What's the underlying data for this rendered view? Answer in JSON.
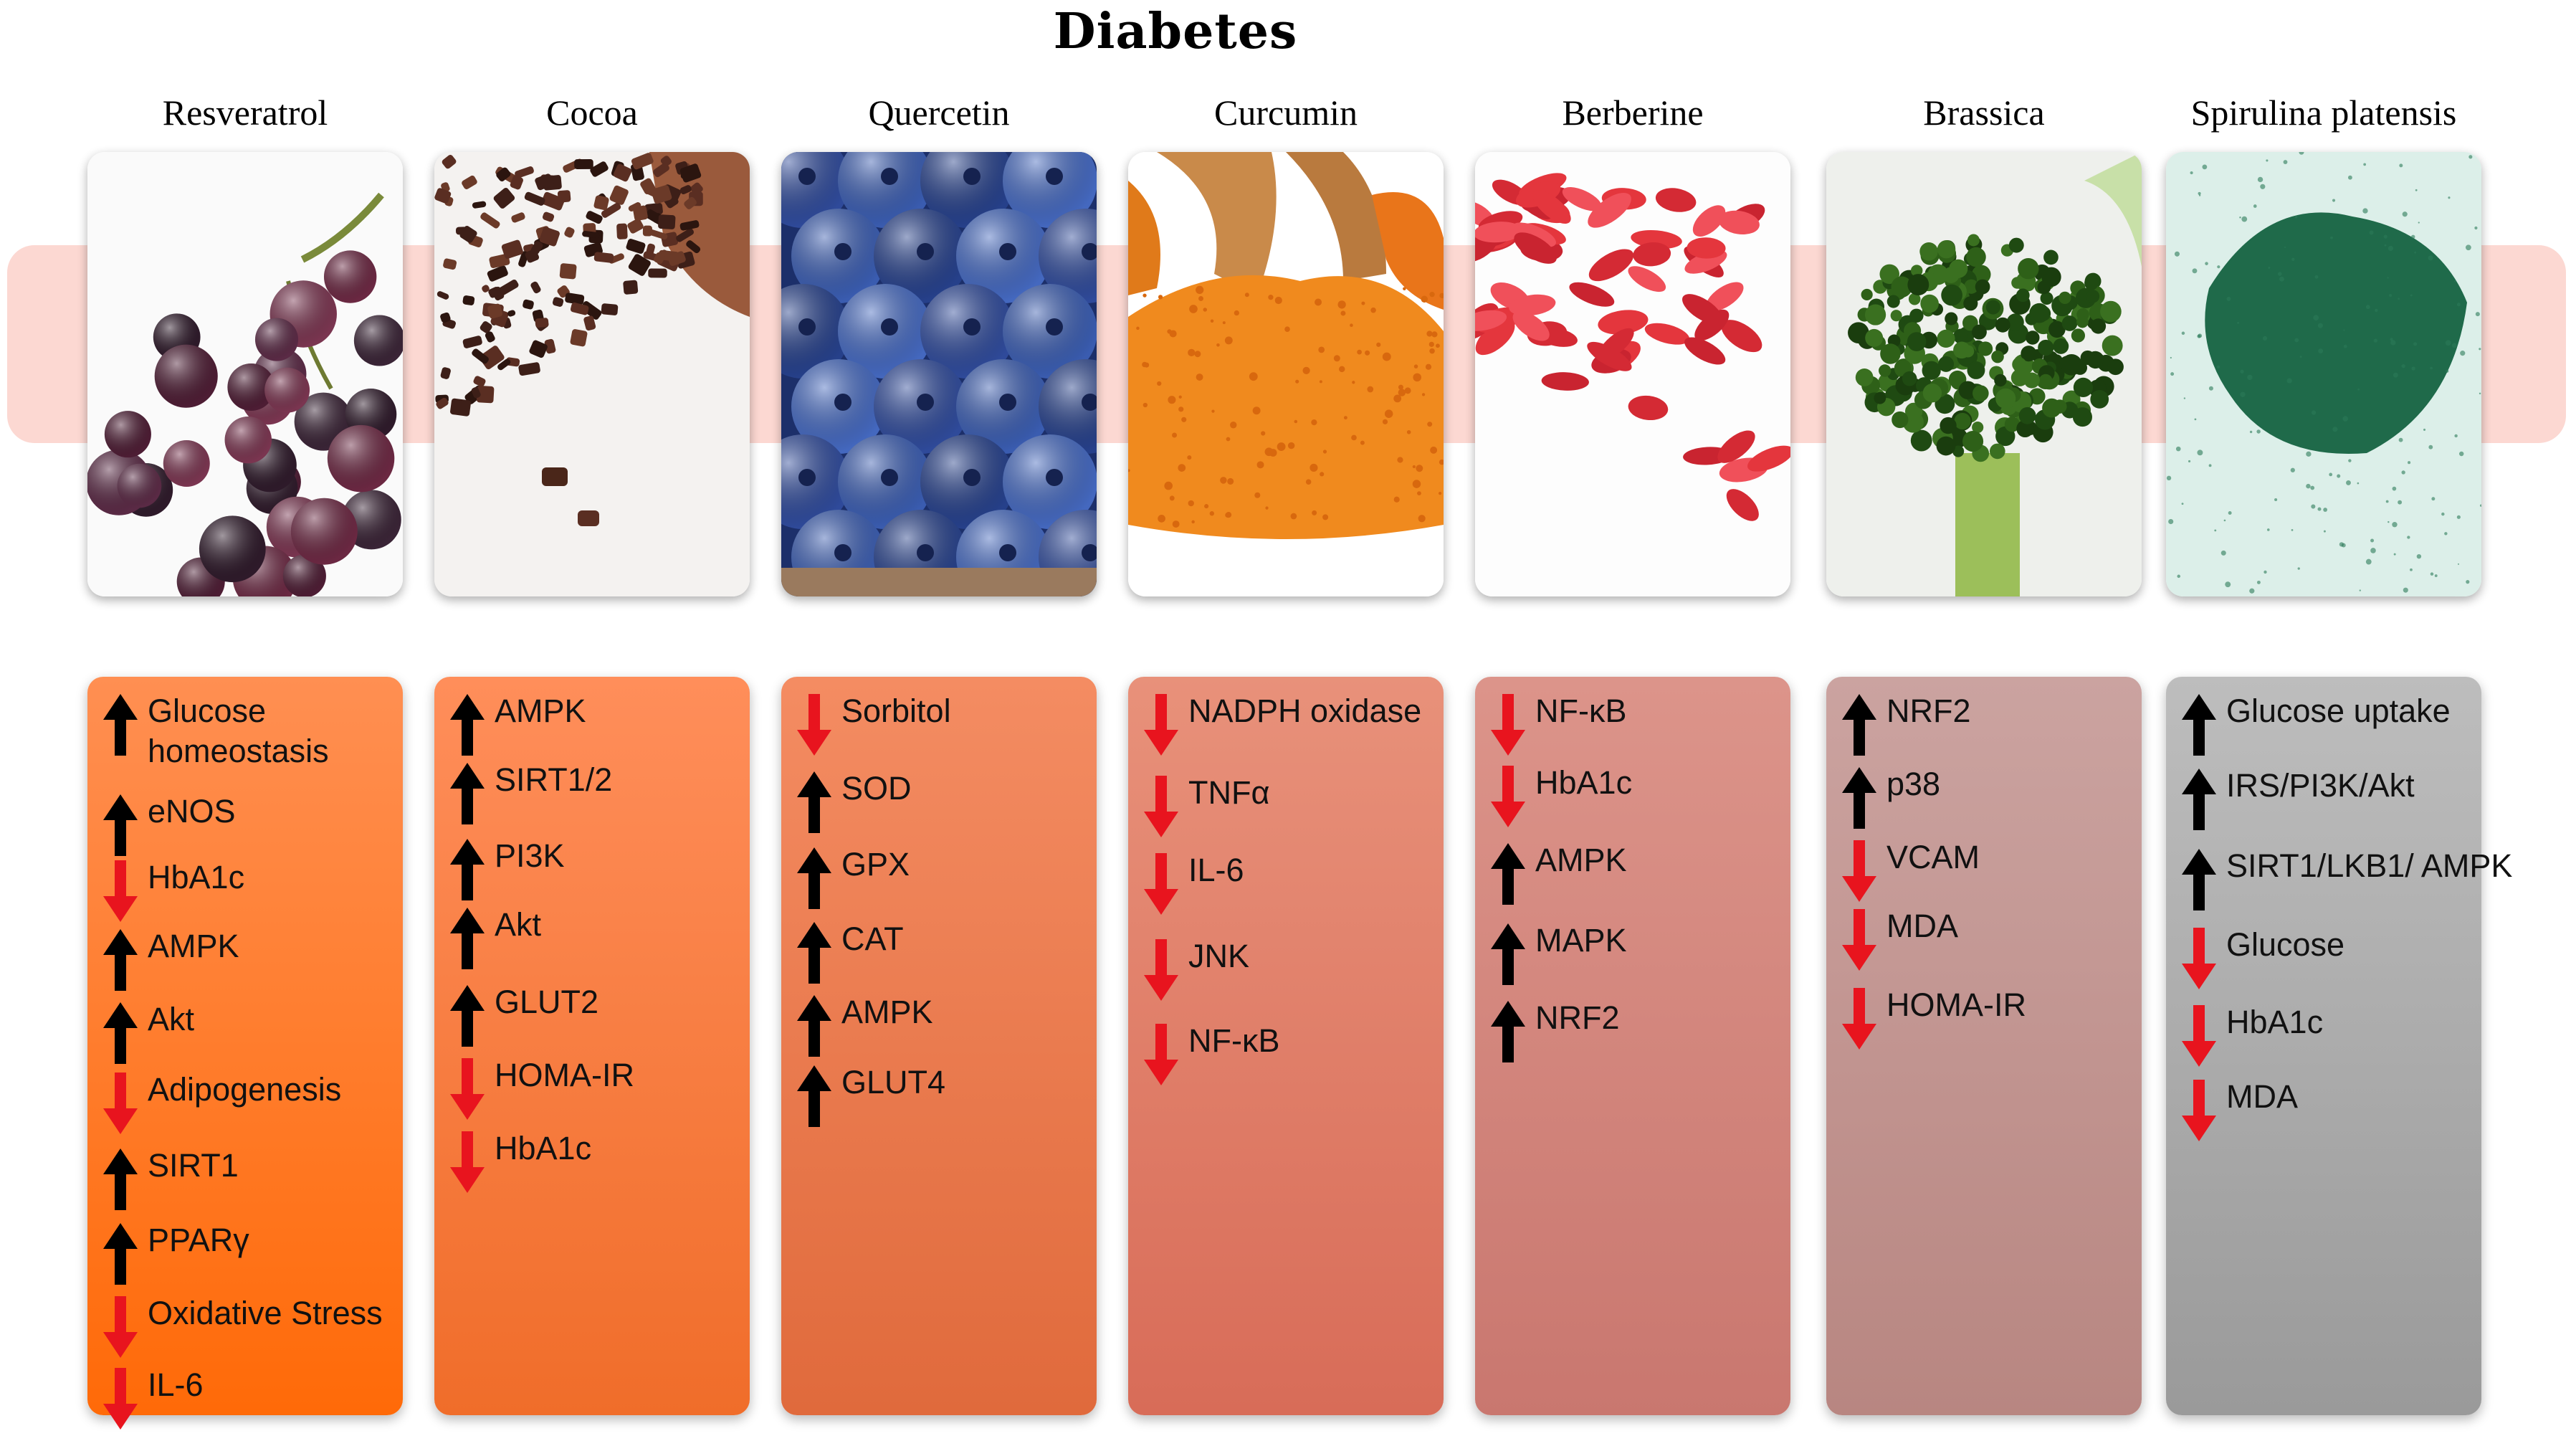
{
  "title": "Diabetes",
  "colors": {
    "up": "#000000",
    "down": "#e8141e",
    "band": "#fcd8d2"
  },
  "columns": [
    {
      "name": "Resveratrol",
      "image": "grapes",
      "panel_color": [
        "#ff8f52",
        "#ff6a08"
      ],
      "items": [
        {
          "label": "Glucose homeostasis",
          "dir": "up"
        },
        {
          "label": "eNOS",
          "dir": "up"
        },
        {
          "label": "HbA1c",
          "dir": "down"
        },
        {
          "label": "AMPK",
          "dir": "up"
        },
        {
          "label": "Akt",
          "dir": "up"
        },
        {
          "label": "Adipogenesis",
          "dir": "down"
        },
        {
          "label": "SIRT1",
          "dir": "up"
        },
        {
          "label": "PPARγ",
          "dir": "up"
        },
        {
          "label": "Oxidative Stress",
          "dir": "down"
        },
        {
          "label": "IL-6",
          "dir": "down"
        }
      ]
    },
    {
      "name": "Cocoa",
      "image": "cocoa-nibs",
      "panel_color": [
        "#ff8e5a",
        "#f06d2a"
      ],
      "items": [
        {
          "label": "AMPK",
          "dir": "up"
        },
        {
          "label": "SIRT1/2",
          "dir": "up"
        },
        {
          "label": "PI3K",
          "dir": "up"
        },
        {
          "label": "Akt",
          "dir": "up"
        },
        {
          "label": "GLUT2",
          "dir": "up"
        },
        {
          "label": "HOMA-IR",
          "dir": "down"
        },
        {
          "label": "HbA1c",
          "dir": "down"
        }
      ]
    },
    {
      "name": "Quercetin",
      "image": "blueberries",
      "panel_color": [
        "#f48c62",
        "#e06a3c"
      ],
      "items": [
        {
          "label": "Sorbitol",
          "dir": "down"
        },
        {
          "label": "SOD",
          "dir": "up"
        },
        {
          "label": "GPX",
          "dir": "up"
        },
        {
          "label": "CAT",
          "dir": "up"
        },
        {
          "label": "AMPK",
          "dir": "up"
        },
        {
          "label": "GLUT4",
          "dir": "up"
        }
      ]
    },
    {
      "name": "Curcumin",
      "image": "turmeric",
      "panel_color": [
        "#e8917a",
        "#d86c58"
      ],
      "items": [
        {
          "label": "NADPH oxidase",
          "dir": "down"
        },
        {
          "label": "TNFα",
          "dir": "down"
        },
        {
          "label": "IL-6",
          "dir": "down"
        },
        {
          "label": "JNK",
          "dir": "down"
        },
        {
          "label": "NF-κB",
          "dir": "down"
        }
      ]
    },
    {
      "name": "Berberine",
      "image": "goji-berries",
      "panel_color": [
        "#dc948a",
        "#c9776f"
      ],
      "items": [
        {
          "label": "NF-κB",
          "dir": "down"
        },
        {
          "label": "HbA1c",
          "dir": "down"
        },
        {
          "label": "AMPK",
          "dir": "up"
        },
        {
          "label": "MAPK",
          "dir": "up"
        },
        {
          "label": "NRF2",
          "dir": "up"
        }
      ]
    },
    {
      "name": "Brassica",
      "image": "broccoli",
      "panel_color": [
        "#cba3a0",
        "#b88681"
      ],
      "items": [
        {
          "label": "NRF2",
          "dir": "up"
        },
        {
          "label": "p38",
          "dir": "up"
        },
        {
          "label": "VCAM",
          "dir": "down"
        },
        {
          "label": "MDA",
          "dir": "down"
        },
        {
          "label": "HOMA-IR",
          "dir": "down"
        }
      ]
    },
    {
      "name": "Spirulina platensis",
      "image": "spirulina-powder",
      "panel_color": [
        "#bdbdbd",
        "#9a9a9a"
      ],
      "items": [
        {
          "label": "Glucose uptake",
          "dir": "up"
        },
        {
          "label": "IRS/PI3K/Akt",
          "dir": "up"
        },
        {
          "label": "SIRT1/LKB1/ AMPK",
          "dir": "up"
        },
        {
          "label": "Glucose",
          "dir": "down"
        },
        {
          "label": "HbA1c",
          "dir": "down"
        },
        {
          "label": "MDA",
          "dir": "down"
        }
      ]
    }
  ]
}
